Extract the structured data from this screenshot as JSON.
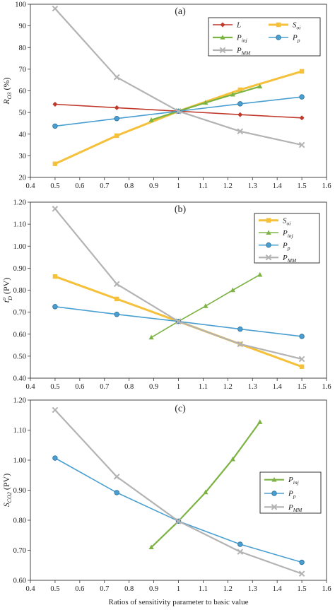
{
  "colors": {
    "L": "#c0392b",
    "Soi": "#f5c03a",
    "Pinj": "#7cb342",
    "Pp": "#4a9fd1",
    "PMM": "#b3b3b3"
  },
  "chart_data": [
    {
      "type": "line",
      "panel_label": "(a)",
      "ylabel_main": "R",
      "ylabel_sub": "O3",
      "ylabel_unit": " (%)",
      "xlim": [
        0.4,
        1.6
      ],
      "ylim": [
        20,
        100
      ],
      "xticks": [
        "0.4",
        "0.5",
        "0.6",
        "0.7",
        "0.8",
        "0.9",
        "1",
        "1.1",
        "1.2",
        "1.3",
        "1.4",
        "1.5",
        "1.6"
      ],
      "yticks": [
        "20",
        "30",
        "40",
        "50",
        "60",
        "70",
        "80",
        "90",
        "100"
      ],
      "legend_columns": 2,
      "series": [
        {
          "key": "L",
          "main": "L",
          "sub": "",
          "color_key": "L",
          "marker": "diamond",
          "width": 1.6,
          "x": [
            0.5,
            0.75,
            1,
            1.25,
            1.5
          ],
          "y": [
            53.8,
            52.2,
            50.6,
            49.0,
            47.5
          ]
        },
        {
          "key": "Soi",
          "main": "S",
          "sub": "oi",
          "color_key": "Soi",
          "marker": "square",
          "width": 3,
          "x": [
            0.5,
            0.75,
            1,
            1.25,
            1.5
          ],
          "y": [
            26.3,
            39.3,
            50.6,
            60.5,
            69.0
          ]
        },
        {
          "key": "Pinj",
          "main": "P",
          "sub": "inj",
          "color_key": "Pinj",
          "marker": "triangle",
          "width": 2.2,
          "x": [
            0.89,
            1,
            1.11,
            1.22,
            1.33
          ],
          "y": [
            46.5,
            50.6,
            54.5,
            58.3,
            62.0
          ]
        },
        {
          "key": "Pp",
          "main": "P",
          "sub": "p",
          "color_key": "Pp",
          "marker": "circle",
          "width": 1.6,
          "x": [
            0.5,
            0.75,
            1,
            1.25,
            1.5
          ],
          "y": [
            43.7,
            47.2,
            50.6,
            54.0,
            57.2
          ]
        },
        {
          "key": "PMM",
          "main": "P",
          "sub": "MM",
          "color_key": "PMM",
          "marker": "cross",
          "width": 2.2,
          "x": [
            0.5,
            0.75,
            1,
            1.25,
            1.5
          ],
          "y": [
            98.0,
            66.3,
            50.6,
            41.3,
            35.0
          ]
        }
      ]
    },
    {
      "type": "line",
      "panel_label": "(b)",
      "ylabel_main": "t",
      "ylabel_sub": "D",
      "ylabel_sup": "o",
      "ylabel_unit": " (PV)",
      "xlim": [
        0.4,
        1.6
      ],
      "ylim": [
        0.4,
        1.2
      ],
      "xticks": [
        "0.4",
        "0.5",
        "0.6",
        "0.7",
        "0.8",
        "0.9",
        "1",
        "1.1",
        "1.2",
        "1.3",
        "1.4",
        "1.5",
        "1.6"
      ],
      "yticks": [
        "0.40",
        "0.50",
        "0.60",
        "0.70",
        "0.80",
        "0.90",
        "1.00",
        "1.10",
        "1.20"
      ],
      "legend_columns": 1,
      "series": [
        {
          "key": "Soi",
          "main": "S",
          "sub": "oi",
          "color_key": "Soi",
          "marker": "square",
          "width": 3,
          "x": [
            0.5,
            0.75,
            1,
            1.25,
            1.5
          ],
          "y": [
            0.862,
            0.76,
            0.658,
            0.555,
            0.452
          ]
        },
        {
          "key": "Pinj",
          "main": "P",
          "sub": "inj",
          "color_key": "Pinj",
          "marker": "triangle",
          "width": 1.6,
          "x": [
            0.89,
            1,
            1.11,
            1.22,
            1.33
          ],
          "y": [
            0.585,
            0.658,
            0.728,
            0.8,
            0.87
          ]
        },
        {
          "key": "Pp",
          "main": "P",
          "sub": "p",
          "color_key": "Pp",
          "marker": "circle",
          "width": 1.6,
          "x": [
            0.5,
            0.75,
            1,
            1.25,
            1.5
          ],
          "y": [
            0.725,
            0.69,
            0.658,
            0.623,
            0.59
          ]
        },
        {
          "key": "PMM",
          "main": "P",
          "sub": "MM",
          "color_key": "PMM",
          "marker": "cross",
          "width": 2.2,
          "x": [
            0.5,
            0.75,
            1,
            1.25,
            1.5
          ],
          "y": [
            1.17,
            0.828,
            0.658,
            0.555,
            0.487
          ]
        }
      ]
    },
    {
      "type": "line",
      "panel_label": "(c)",
      "ylabel_main": "S",
      "ylabel_sub": "CO2",
      "ylabel_unit": " (PV)",
      "xlim": [
        0.4,
        1.6
      ],
      "ylim": [
        0.6,
        1.2
      ],
      "xticks": [
        "0.4",
        "0.5",
        "0.6",
        "0.7",
        "0.8",
        "0.9",
        "1",
        "1.1",
        "1.2",
        "1.3",
        "1.4",
        "1.5",
        "1.6"
      ],
      "yticks": [
        "0.60",
        "0.70",
        "0.80",
        "0.90",
        "1.00",
        "1.10",
        "1.20"
      ],
      "xlabel": "Ratios of sensitivity parameter to basic value",
      "legend_columns": 1,
      "series": [
        {
          "key": "Pinj",
          "main": "P",
          "sub": "inj",
          "color_key": "Pinj",
          "marker": "triangle",
          "width": 2.2,
          "x": [
            0.89,
            1,
            1.11,
            1.22,
            1.33
          ],
          "y": [
            0.71,
            0.797,
            0.893,
            1.003,
            1.127
          ]
        },
        {
          "key": "Pp",
          "main": "P",
          "sub": "p",
          "color_key": "Pp",
          "marker": "circle",
          "width": 1.6,
          "x": [
            0.5,
            0.75,
            1,
            1.25,
            1.5
          ],
          "y": [
            1.007,
            0.892,
            0.797,
            0.72,
            0.66
          ]
        },
        {
          "key": "PMM",
          "main": "P",
          "sub": "MM",
          "color_key": "PMM",
          "marker": "cross",
          "width": 2.2,
          "x": [
            0.5,
            0.75,
            1,
            1.25,
            1.5
          ],
          "y": [
            1.167,
            0.945,
            0.797,
            0.695,
            0.622
          ]
        }
      ]
    }
  ]
}
